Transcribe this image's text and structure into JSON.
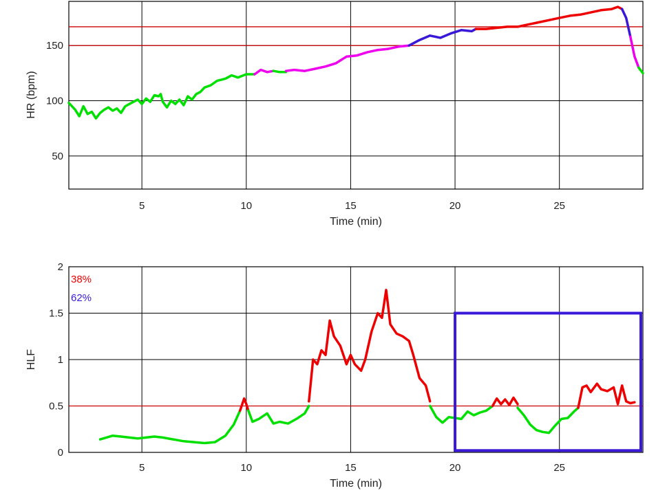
{
  "chart_data": [
    {
      "type": "line",
      "title": "",
      "xlabel": "Time (min)",
      "ylabel": "HR (bpm)",
      "xlim": [
        1.5,
        29
      ],
      "ylim": [
        20,
        190
      ],
      "xticks": [
        5,
        10,
        15,
        20,
        25
      ],
      "yticks": [
        50,
        100,
        150
      ],
      "grid": true,
      "hlines": [
        {
          "y": 150,
          "color": "#cc0000"
        },
        {
          "y": 167,
          "color": "#cc0000"
        }
      ],
      "series": [
        {
          "color": "#00e000",
          "x": [
            1.5,
            1.8,
            2.0,
            2.2,
            2.4,
            2.6,
            2.8,
            3.0,
            3.2,
            3.4,
            3.6,
            3.8,
            4.0,
            4.2,
            4.4,
            4.6,
            4.8,
            5.0,
            5.2,
            5.4,
            5.6,
            5.8,
            5.9,
            6.0,
            6.2,
            6.4,
            6.6,
            6.8,
            7.0,
            7.2,
            7.4,
            7.6,
            7.8,
            8.0,
            8.3,
            8.6,
            9.0,
            9.3,
            9.6,
            10.0,
            10.4
          ],
          "y": [
            98,
            92,
            86,
            95,
            88,
            90,
            84,
            89,
            92,
            94,
            91,
            93,
            89,
            95,
            97,
            99,
            101,
            97,
            102,
            99,
            105,
            104,
            106,
            99,
            94,
            100,
            97,
            101,
            96,
            104,
            101,
            106,
            108,
            112,
            114,
            118,
            120,
            123,
            121,
            124,
            124
          ]
        },
        {
          "color": "#ee00ee",
          "x": [
            10.4,
            10.7,
            11.0,
            11.3
          ],
          "y": [
            124,
            128,
            126,
            127
          ]
        },
        {
          "color": "#00e000",
          "x": [
            11.3,
            11.6,
            11.9
          ],
          "y": [
            127,
            126,
            126
          ]
        },
        {
          "color": "#ee00ee",
          "x": [
            11.9,
            12.3,
            12.8,
            13.3,
            13.8,
            14.3,
            14.8,
            15.3,
            15.8,
            16.3,
            16.8,
            17.3,
            17.8
          ],
          "y": [
            127,
            128,
            127,
            129,
            131,
            134,
            140,
            141,
            144,
            146,
            147,
            149,
            150
          ]
        },
        {
          "color": "#3a18d8",
          "x": [
            17.8,
            18.3,
            18.8,
            19.3,
            19.8,
            20.3,
            20.8,
            21.0
          ],
          "y": [
            150,
            155,
            159,
            157,
            161,
            164,
            163,
            165
          ]
        },
        {
          "color": "#ee0000",
          "x": [
            21.0,
            21.5,
            22.0,
            22.5,
            23.0,
            23.5,
            24.0,
            24.5,
            25.0,
            25.5,
            26.0,
            26.5,
            27.0,
            27.5,
            27.8,
            28.0
          ],
          "y": [
            165,
            165,
            166,
            167,
            167,
            169,
            171,
            173,
            175,
            177,
            178,
            180,
            182,
            183,
            185,
            183
          ]
        },
        {
          "color": "#3a18d8",
          "x": [
            28.0,
            28.2,
            28.4
          ],
          "y": [
            183,
            175,
            158
          ]
        },
        {
          "color": "#ee00ee",
          "x": [
            28.4,
            28.6,
            28.8
          ],
          "y": [
            158,
            140,
            130
          ]
        },
        {
          "color": "#00e000",
          "x": [
            28.8,
            29.0
          ],
          "y": [
            130,
            125
          ]
        }
      ]
    },
    {
      "type": "line",
      "title": "",
      "xlabel": "Time (min)",
      "ylabel": "HLF",
      "xlim": [
        1.5,
        29
      ],
      "ylim": [
        0,
        2
      ],
      "xticks": [
        5,
        10,
        15,
        20,
        25
      ],
      "yticks": [
        0,
        0.5,
        1,
        1.5,
        2
      ],
      "ytick_labels": [
        "0",
        "0.5",
        "1",
        "1.5",
        "2"
      ],
      "grid": true,
      "hlines": [
        {
          "y": 0.5,
          "color": "#cc0000"
        }
      ],
      "annotations": [
        {
          "text": "38%",
          "color": "#ee0000"
        },
        {
          "text": "62%",
          "color": "#3a18d8"
        }
      ],
      "highlight_box": {
        "x": [
          20,
          28.9
        ],
        "y": [
          0.02,
          1.5
        ],
        "color": "#3a18d8"
      },
      "series": [
        {
          "color": "#00e000",
          "x": [
            3.0,
            3.3,
            3.6,
            4.0,
            4.4,
            4.8,
            5.2,
            5.6,
            6.0,
            6.5,
            7.0,
            7.5,
            8.0,
            8.5,
            9.0,
            9.4,
            9.7
          ],
          "y": [
            0.14,
            0.16,
            0.18,
            0.17,
            0.16,
            0.15,
            0.16,
            0.17,
            0.16,
            0.14,
            0.12,
            0.11,
            0.1,
            0.11,
            0.18,
            0.3,
            0.45
          ]
        },
        {
          "color": "#ee0000",
          "x": [
            9.7,
            9.9,
            10.0,
            10.1
          ],
          "y": [
            0.45,
            0.58,
            0.52,
            0.45
          ]
        },
        {
          "color": "#00e000",
          "x": [
            10.1,
            10.3,
            10.6,
            11.0,
            11.3,
            11.6,
            12.0,
            12.4,
            12.8,
            13.0
          ],
          "y": [
            0.45,
            0.33,
            0.36,
            0.42,
            0.31,
            0.33,
            0.31,
            0.36,
            0.42,
            0.5
          ]
        },
        {
          "color": "#ee0000",
          "x": [
            13.0,
            13.2,
            13.4,
            13.6,
            13.8,
            14.0,
            14.2,
            14.5,
            14.8,
            15.0,
            15.2,
            15.5,
            15.7,
            16.0,
            16.3,
            16.5,
            16.7,
            16.9,
            17.2,
            17.5,
            17.8,
            18.0,
            18.3,
            18.6,
            18.8
          ],
          "y": [
            0.55,
            1.0,
            0.95,
            1.1,
            1.05,
            1.42,
            1.25,
            1.15,
            0.95,
            1.05,
            0.95,
            0.88,
            1.0,
            1.3,
            1.5,
            1.45,
            1.75,
            1.38,
            1.28,
            1.25,
            1.2,
            1.05,
            0.8,
            0.72,
            0.55
          ]
        },
        {
          "color": "#00e000",
          "x": [
            18.8,
            19.1,
            19.4,
            19.7,
            20.0,
            20.3,
            20.6,
            20.9,
            21.2,
            21.5,
            21.8
          ],
          "y": [
            0.5,
            0.38,
            0.32,
            0.38,
            0.37,
            0.36,
            0.44,
            0.4,
            0.43,
            0.45,
            0.5
          ]
        },
        {
          "color": "#ee0000",
          "x": [
            21.8,
            22.0,
            22.2,
            22.4,
            22.6,
            22.8,
            23.0
          ],
          "y": [
            0.5,
            0.58,
            0.52,
            0.57,
            0.51,
            0.59,
            0.52
          ]
        },
        {
          "color": "#00e000",
          "x": [
            23.0,
            23.3,
            23.6,
            23.9,
            24.2,
            24.5,
            24.8,
            25.1,
            25.4,
            25.7,
            25.9
          ],
          "y": [
            0.48,
            0.4,
            0.3,
            0.24,
            0.22,
            0.21,
            0.29,
            0.36,
            0.37,
            0.44,
            0.48
          ]
        },
        {
          "color": "#ee0000",
          "x": [
            25.9,
            26.1,
            26.3,
            26.5,
            26.8,
            27.0,
            27.3,
            27.6,
            27.8,
            28.0,
            28.2,
            28.4,
            28.6
          ],
          "y": [
            0.48,
            0.7,
            0.72,
            0.65,
            0.74,
            0.68,
            0.66,
            0.7,
            0.52,
            0.72,
            0.55,
            0.53,
            0.54
          ]
        }
      ]
    }
  ]
}
